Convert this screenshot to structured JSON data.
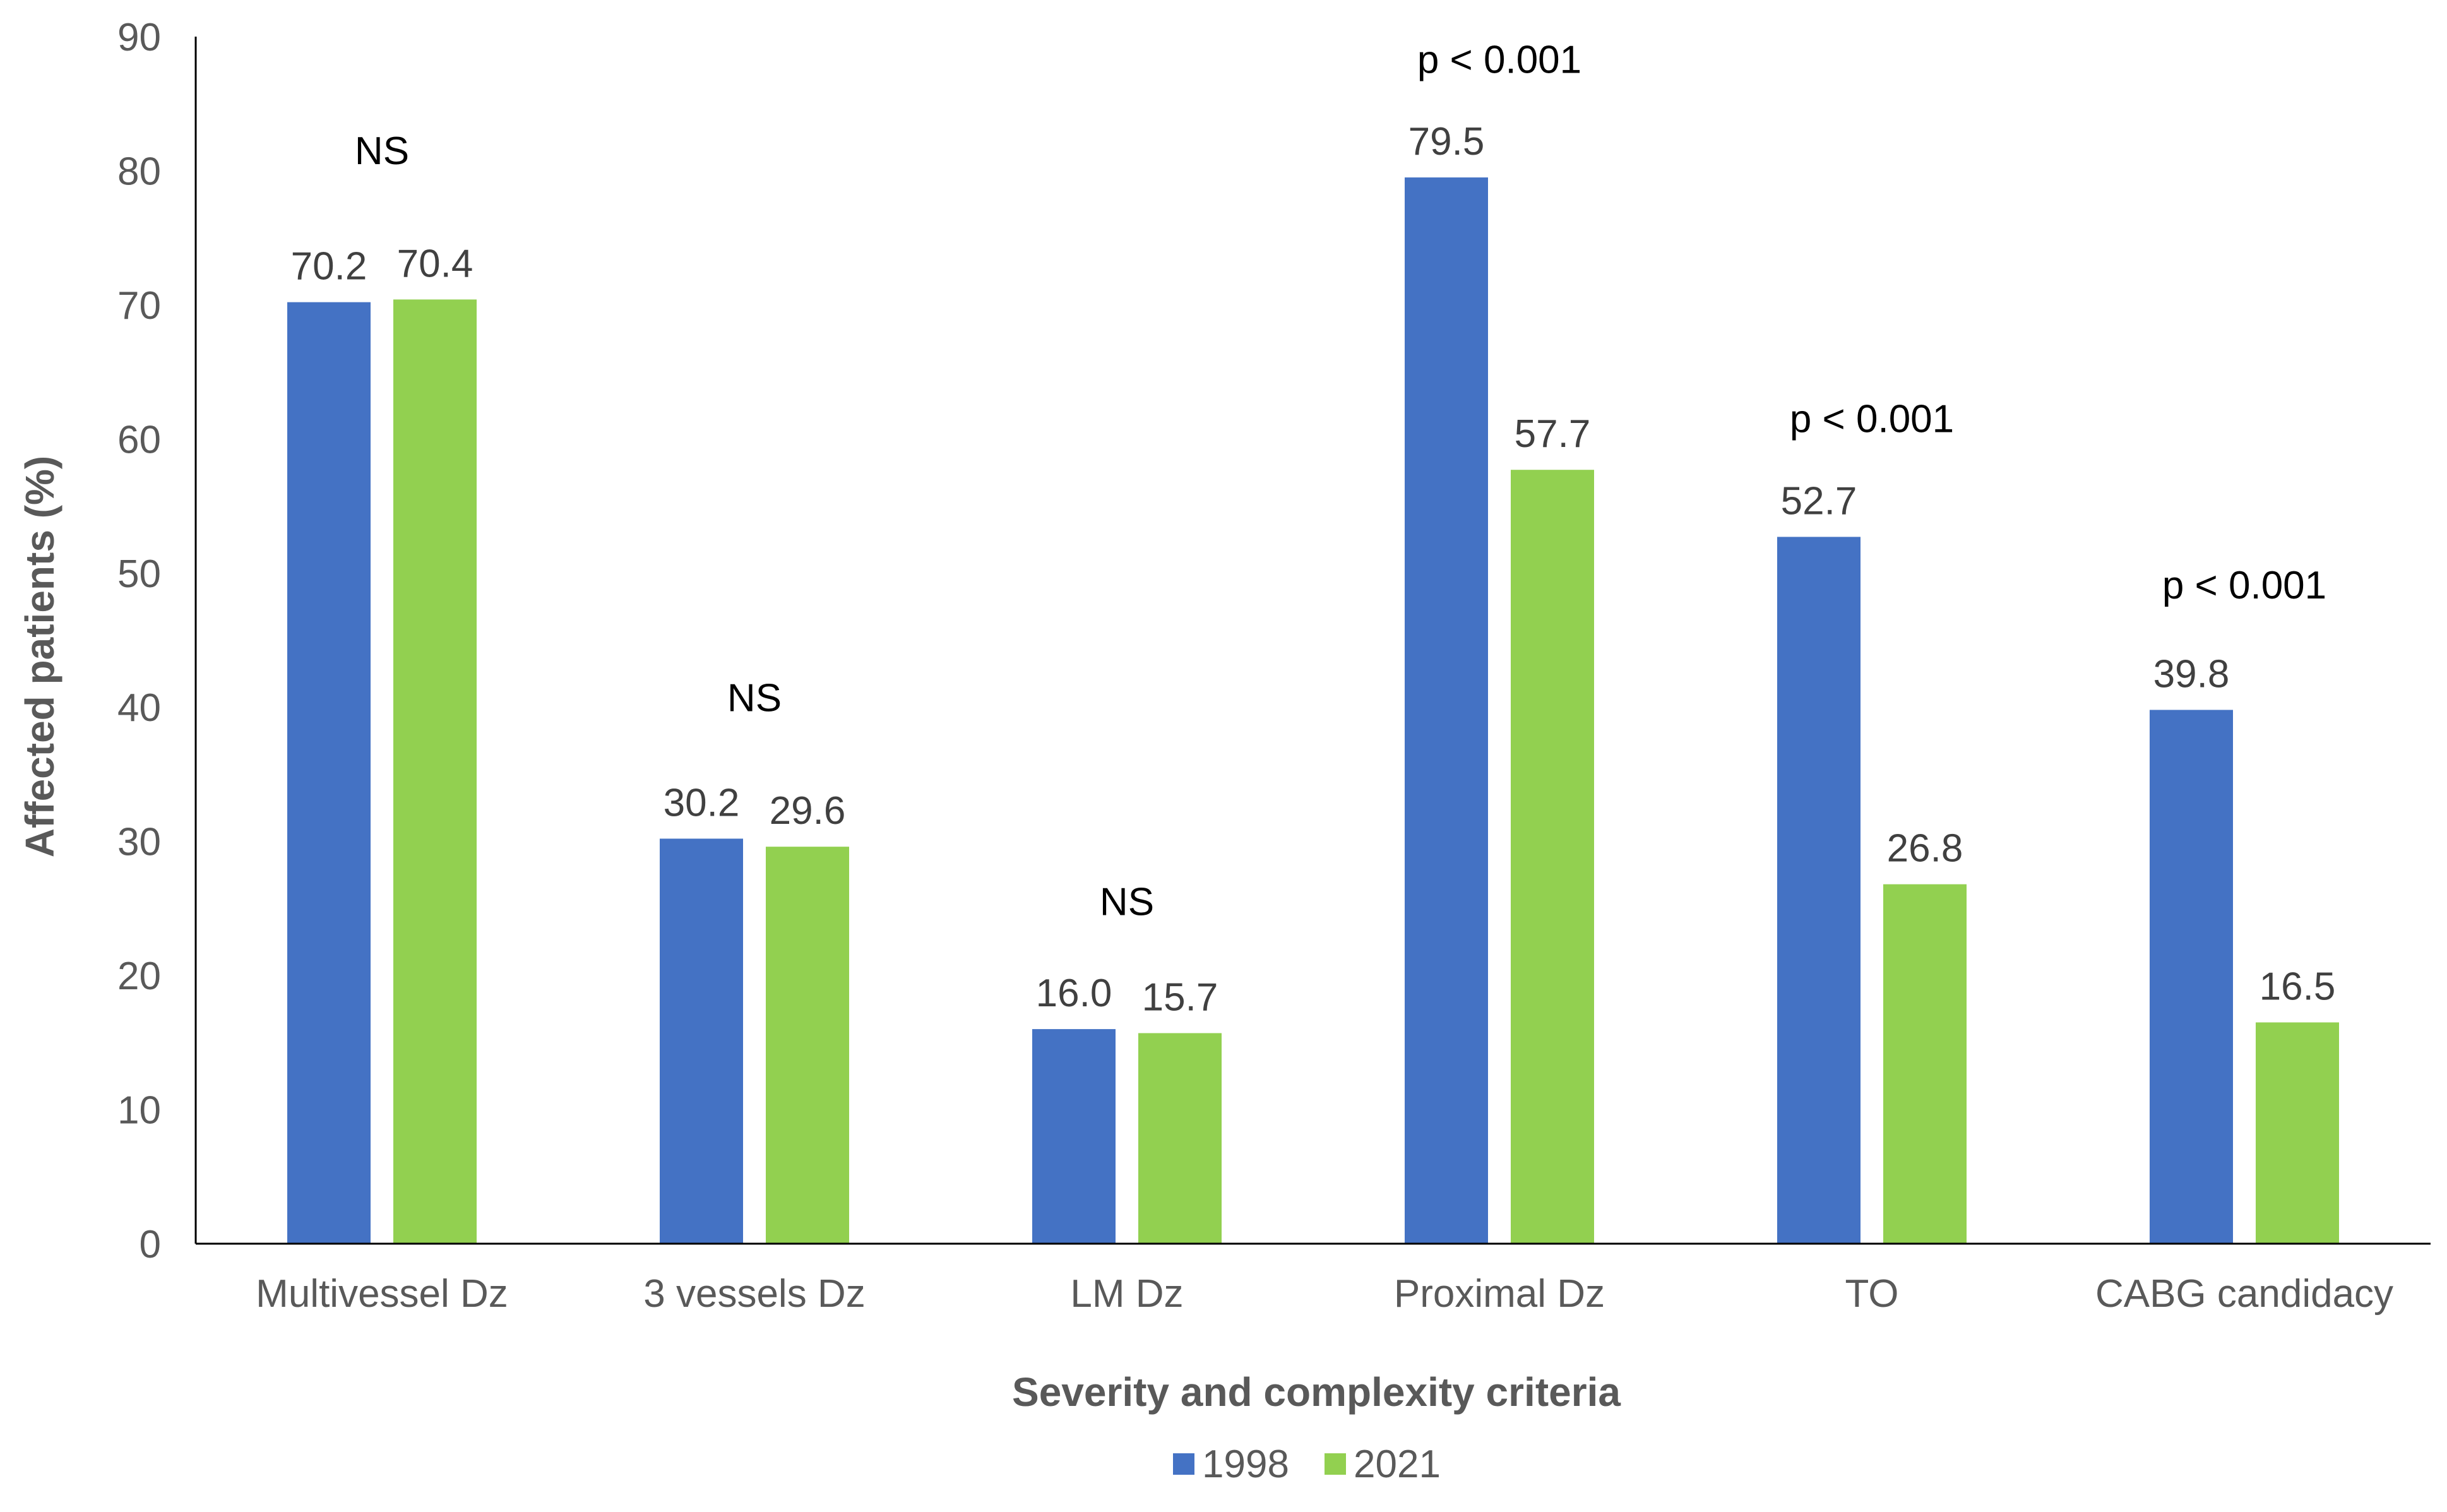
{
  "chart_data": {
    "type": "bar",
    "title": "",
    "xlabel": "Severity and complexity criteria",
    "ylabel": "Affected patients (%)",
    "ylim": [
      0,
      90
    ],
    "yticks": [
      0,
      10,
      20,
      30,
      40,
      50,
      60,
      70,
      80,
      90
    ],
    "grid": false,
    "legend_position": "bottom-center",
    "categories": [
      "Multivessel Dz",
      "3 vessels Dz",
      "LM Dz",
      "Proximal Dz",
      "TO",
      "CABG candidacy"
    ],
    "series": [
      {
        "name": "1998",
        "color": "#4472C4",
        "values": [
          70.2,
          30.2,
          16.0,
          79.5,
          52.7,
          39.8
        ],
        "labels": [
          "70.2",
          "30.2",
          "16.0",
          "79.5",
          "52.7",
          "39.8"
        ]
      },
      {
        "name": "2021",
        "color": "#92D050",
        "values": [
          70.4,
          29.6,
          15.7,
          57.7,
          26.8,
          16.5
        ],
        "labels": [
          "70.4",
          "29.6",
          "15.7",
          "57.7",
          "26.8",
          "16.5"
        ]
      }
    ],
    "annotations": [
      {
        "category": "Multivessel Dz",
        "text": "NS",
        "y": 80.5
      },
      {
        "category": "3 vessels Dz",
        "text": "NS",
        "y": 39.7
      },
      {
        "category": "LM Dz",
        "text": "NS",
        "y": 24.5
      },
      {
        "category": "Proximal Dz",
        "text": "p < 0.001",
        "y": 87.3
      },
      {
        "category": "TO",
        "text": "p < 0.001",
        "y": 60.5
      },
      {
        "category": "CABG candidacy",
        "text": "p < 0.001",
        "y": 48.1
      }
    ]
  }
}
